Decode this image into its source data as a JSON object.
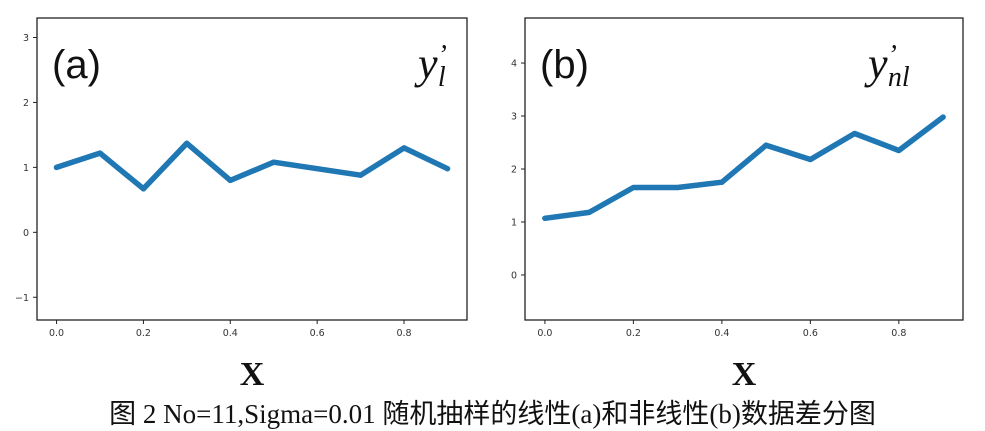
{
  "caption": "图 2 No=11,Sigma=0.01 随机抽样的线性(a)和非线性(b)数据差分图",
  "chart_data": [
    {
      "type": "line",
      "panel_label": "(a)",
      "series_label": "y",
      "series_label_sub": "l",
      "series_label_mark": "’",
      "xlabel": "X",
      "ylabel": "",
      "x": [
        0.0,
        0.1,
        0.2,
        0.3,
        0.4,
        0.5,
        0.6,
        0.7,
        0.8,
        0.9
      ],
      "series": [
        {
          "values": [
            1.0,
            1.22,
            0.67,
            1.37,
            0.8,
            1.08,
            0.98,
            0.88,
            1.3,
            0.98
          ],
          "color": "#1f77b4"
        }
      ],
      "xticks": [
        0.0,
        0.2,
        0.4,
        0.6,
        0.8
      ],
      "xtick_labels": [
        "0.0",
        "0.2",
        "0.4",
        "0.6",
        "0.8"
      ],
      "yticks": [
        -1,
        0,
        1,
        2,
        3
      ],
      "ytick_labels": [
        "−1",
        "0",
        "1",
        "2",
        "3"
      ],
      "xlim": [
        -0.045,
        0.945
      ],
      "ylim": [
        -1.35,
        3.3
      ],
      "grid": false,
      "legend": "none"
    },
    {
      "type": "line",
      "panel_label": "(b)",
      "series_label": "y",
      "series_label_sub": "nl",
      "series_label_mark": "’",
      "xlabel": "X",
      "ylabel": "",
      "x": [
        0.0,
        0.1,
        0.2,
        0.3,
        0.4,
        0.5,
        0.6,
        0.7,
        0.8,
        0.9
      ],
      "series": [
        {
          "values": [
            1.07,
            1.18,
            1.65,
            1.65,
            1.75,
            2.45,
            2.18,
            2.67,
            2.35,
            2.98
          ],
          "color": "#1f77b4"
        }
      ],
      "xticks": [
        0.0,
        0.2,
        0.4,
        0.6,
        0.8
      ],
      "xtick_labels": [
        "0.0",
        "0.2",
        "0.4",
        "0.6",
        "0.8"
      ],
      "yticks": [
        0,
        1,
        2,
        3,
        4
      ],
      "ytick_labels": [
        "0",
        "1",
        "2",
        "3",
        "4"
      ],
      "xlim": [
        -0.045,
        0.945
      ],
      "ylim": [
        -0.85,
        4.85
      ],
      "grid": false,
      "legend": "none"
    }
  ]
}
